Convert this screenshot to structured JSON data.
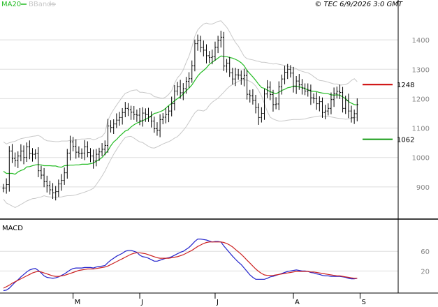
{
  "legend": {
    "ma_label": "MA20",
    "bands_label": "BBands",
    "ma_color": "#22bb22",
    "bands_color": "#c8c8c8"
  },
  "copyright": "© TEC 6/9/2026 3:0 GMT",
  "macd_label": "MACD",
  "colors": {
    "price_bar": "#000000",
    "resistance": "#cc0000",
    "support": "#119911",
    "macd_line": "#2222cc",
    "signal_line": "#cc2222",
    "grid": "#dddddd"
  },
  "chart_data": [
    {
      "type": "ohlc",
      "panel": "price",
      "ylim": [
        800,
        1500
      ],
      "y_ticks": [
        900,
        1000,
        1100,
        1200,
        1300,
        1400
      ],
      "x_ticks": [
        {
          "label": "M",
          "index": 24
        },
        {
          "label": "J",
          "index": 47
        },
        {
          "label": "J",
          "index": 73
        },
        {
          "label": "A",
          "index": 100
        },
        {
          "label": "S",
          "index": 123
        }
      ],
      "close": [
        896,
        908,
        1022,
        997,
        990,
        1005,
        1022,
        1000,
        1036,
        1014,
        1011,
        1014,
        955,
        940,
        918,
        905,
        890,
        880,
        884,
        910,
        922,
        948,
        1015,
        1053,
        1038,
        1018,
        1014,
        1015,
        1036,
        1017,
        1005,
        988,
        1011,
        1019,
        1028,
        1041,
        1107,
        1102,
        1114,
        1127,
        1136,
        1153,
        1167,
        1162,
        1154,
        1146,
        1144,
        1125,
        1151,
        1146,
        1138,
        1124,
        1098,
        1093,
        1129,
        1137,
        1146,
        1158,
        1183,
        1226,
        1241,
        1220,
        1234,
        1259,
        1268,
        1312,
        1387,
        1397,
        1374,
        1365,
        1346,
        1340,
        1344,
        1375,
        1399,
        1409,
        1311,
        1321,
        1288,
        1267,
        1281,
        1280,
        1268,
        1279,
        1215,
        1210,
        1195,
        1170,
        1136,
        1150,
        1216,
        1239,
        1214,
        1180,
        1182,
        1240,
        1267,
        1290,
        1300,
        1287,
        1241,
        1260,
        1247,
        1236,
        1226,
        1229,
        1203,
        1200,
        1183,
        1190,
        1153,
        1158,
        1167,
        1197,
        1218,
        1225,
        1221,
        1167,
        1195,
        1158,
        1135,
        1149,
        1180
      ]
    },
    {
      "type": "line",
      "panel": "price",
      "series": [
        {
          "name": "MA20",
          "values": [
            953,
            946,
            946,
            946,
            943,
            951,
            956,
            959,
            968,
            969,
            972,
            975,
            976,
            975,
            972,
            972,
            972,
            971,
            971,
            968,
            967,
            972,
            973,
            974,
            974,
            975,
            975,
            977,
            977,
            977,
            979,
            981,
            987,
            993,
            1000,
            1012,
            1023,
            1040,
            1053,
            1061,
            1072,
            1081,
            1090,
            1094,
            1104,
            1111,
            1117,
            1121,
            1125,
            1130,
            1135,
            1142,
            1150,
            1152,
            1156,
            1160,
            1168,
            1177,
            1184,
            1193,
            1200,
            1207,
            1216,
            1227,
            1236,
            1247,
            1262,
            1277,
            1288,
            1296,
            1305,
            1317,
            1324,
            1331,
            1338,
            1345,
            1344,
            1343,
            1340,
            1338,
            1334,
            1329,
            1322,
            1312,
            1296,
            1285,
            1274,
            1262,
            1249,
            1238,
            1235,
            1229,
            1224,
            1220,
            1217,
            1222,
            1228,
            1232,
            1237,
            1239,
            1243,
            1243,
            1240,
            1238,
            1234,
            1230,
            1226,
            1225,
            1224,
            1221,
            1219,
            1218,
            1217,
            1213,
            1212,
            1213,
            1212,
            1206,
            1200,
            1190,
            1185,
            1180,
            1179
          ]
        }
      ]
    },
    {
      "type": "area",
      "panel": "price",
      "series": [
        {
          "name": "BBands upper",
          "values": [
            1053,
            1046,
            1050,
            1053,
            1055,
            1060,
            1064,
            1066,
            1068,
            1070,
            1072,
            1073,
            1075,
            1070,
            1062,
            1057,
            1056,
            1055,
            1054,
            1054,
            1056,
            1056,
            1056,
            1058,
            1058,
            1060,
            1062,
            1063,
            1063,
            1064,
            1064,
            1060,
            1063,
            1068,
            1072,
            1084,
            1126,
            1147,
            1163,
            1178,
            1192,
            1206,
            1218,
            1222,
            1227,
            1229,
            1230,
            1222,
            1222,
            1220,
            1218,
            1215,
            1207,
            1205,
            1203,
            1201,
            1206,
            1215,
            1227,
            1252,
            1271,
            1282,
            1298,
            1323,
            1345,
            1376,
            1412,
            1434,
            1445,
            1454,
            1457,
            1454,
            1454,
            1458,
            1463,
            1465,
            1454,
            1443,
            1427,
            1408,
            1391,
            1379,
            1362,
            1344,
            1336,
            1334,
            1332,
            1329,
            1327,
            1324,
            1324,
            1322,
            1320,
            1318,
            1319,
            1317,
            1315,
            1313,
            1310,
            1307,
            1305,
            1302,
            1296,
            1293,
            1290,
            1288,
            1283,
            1275,
            1268,
            1262,
            1261,
            1259,
            1256,
            1253,
            1250,
            1250,
            1246,
            1247,
            1248,
            1253,
            1262,
            1268,
            1258
          ]
        },
        {
          "name": "BBands lower",
          "values": [
            858,
            845,
            840,
            835,
            830,
            835,
            840,
            846,
            852,
            856,
            860,
            861,
            864,
            866,
            870,
            867,
            866,
            865,
            865,
            865,
            866,
            868,
            870,
            870,
            871,
            873,
            876,
            879,
            882,
            886,
            890,
            895,
            908,
            922,
            937,
            954,
            974,
            993,
            1011,
            1027,
            1042,
            1056,
            1068,
            1071,
            1072,
            1066,
            1059,
            1053,
            1051,
            1044,
            1038,
            1033,
            1032,
            1036,
            1041,
            1046,
            1050,
            1054,
            1059,
            1066,
            1071,
            1081,
            1092,
            1105,
            1120,
            1137,
            1152,
            1161,
            1160,
            1158,
            1164,
            1178,
            1188,
            1195,
            1202,
            1212,
            1222,
            1233,
            1242,
            1248,
            1253,
            1259,
            1263,
            1264,
            1263,
            1259,
            1253,
            1243,
            1228,
            1209,
            1183,
            1156,
            1137,
            1131,
            1127,
            1124,
            1124,
            1125,
            1127,
            1128,
            1129,
            1129,
            1129,
            1130,
            1131,
            1134,
            1136,
            1138,
            1140,
            1141,
            1141,
            1140,
            1140,
            1138,
            1136,
            1134,
            1133,
            1132,
            1130,
            1131,
            1134,
            1136,
            1137
          ]
        }
      ]
    },
    {
      "type": "line",
      "panel": "price",
      "series": [
        {
          "name": "Resistance",
          "values": [
            1248
          ],
          "label": "1248"
        },
        {
          "name": "Support",
          "values": [
            1062
          ],
          "label": "1062"
        }
      ]
    },
    {
      "type": "line",
      "panel": "MACD",
      "y_ticks": [
        20,
        60
      ],
      "ylim": [
        -25,
        120
      ],
      "series": [
        {
          "name": "MACD",
          "values": [
            -20,
            -19,
            -15,
            -9,
            -3,
            2,
            8,
            13,
            18,
            22,
            24,
            25,
            21,
            16,
            10,
            7,
            6,
            5,
            6,
            8,
            11,
            14,
            18,
            22,
            25,
            26,
            26,
            26,
            27,
            27,
            27,
            26,
            28,
            29,
            30,
            31,
            37,
            42,
            46,
            50,
            53,
            56,
            60,
            62,
            62,
            60,
            58,
            52,
            49,
            48,
            46,
            43,
            40,
            40,
            42,
            44,
            46,
            47,
            49,
            52,
            55,
            58,
            60,
            64,
            68,
            74,
            80,
            85,
            85,
            84,
            83,
            81,
            79,
            80,
            80,
            79,
            71,
            64,
            57,
            50,
            44,
            38,
            33,
            26,
            19,
            12,
            7,
            3,
            3,
            3,
            3,
            5,
            8,
            9,
            11,
            13,
            15,
            17,
            19,
            20,
            21,
            22,
            21,
            20,
            20,
            19,
            17,
            16,
            14,
            13,
            11,
            10,
            10,
            9,
            9,
            9,
            9,
            8,
            7,
            5,
            4,
            4,
            5
          ]
        },
        {
          "name": "Signal",
          "values": [
            -15,
            -12,
            -9,
            -5,
            -2,
            1,
            4,
            7,
            10,
            13,
            16,
            18,
            19,
            18,
            16,
            14,
            12,
            10,
            9,
            9,
            10,
            11,
            13,
            15,
            17,
            19,
            21,
            22,
            23,
            24,
            24,
            24,
            25,
            26,
            27,
            28,
            30,
            33,
            36,
            39,
            42,
            45,
            48,
            51,
            54,
            56,
            57,
            57,
            56,
            55,
            53,
            51,
            49,
            47,
            46,
            46,
            46,
            46,
            47,
            48,
            49,
            51,
            53,
            56,
            59,
            62,
            66,
            70,
            73,
            76,
            78,
            79,
            79,
            79,
            79,
            79,
            78,
            76,
            73,
            69,
            64,
            59,
            54,
            48,
            42,
            36,
            30,
            24,
            19,
            15,
            12,
            11,
            11,
            11,
            12,
            13,
            14,
            15,
            16,
            17,
            18,
            19,
            19,
            19,
            19,
            19,
            18,
            18,
            17,
            16,
            15,
            14,
            13,
            12,
            11,
            10,
            10,
            9,
            8,
            7,
            6,
            5,
            5
          ]
        }
      ]
    }
  ]
}
